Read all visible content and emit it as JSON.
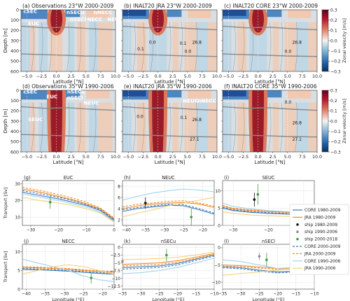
{
  "colors": {
    "neg_deep": "#1f4e98",
    "neg_mid": "#4d87c2",
    "neg_light": "#b9d4e6",
    "neutral": "#d9dee2",
    "pos_light": "#f1c9b2",
    "pos_mid": "#dd7a5c",
    "pos_deep": "#9a1b27",
    "isopycnal": "#8a8a8a"
  },
  "colorbar": {
    "label": "Zonal velocity [m/s]",
    "ticks": [
      "0.3",
      "0.2",
      "0.1",
      "0.0",
      "−0.1",
      "−0.2",
      "−0.3"
    ]
  },
  "sections": {
    "ylabel": "Depth [m]",
    "xlabel": "Latitude [°N]",
    "yticks": [
      "0",
      "100",
      "200",
      "300",
      "400",
      "500",
      "600"
    ],
    "xticks": [
      "−5.0",
      "−2.5",
      "0.0",
      "2.5",
      "5.0",
      "7.5",
      "10.0"
    ],
    "panels": [
      {
        "id": "a",
        "title": "(a)  Observations 23°W 2000-2009",
        "labels": [
          "cSEC",
          "EUC",
          "nSECu",
          "nSECl",
          "nNECC",
          "NECC",
          "NEUC"
        ]
      },
      {
        "id": "b",
        "title": "(b)  INALT20 JRA 23°W 2000-2009",
        "labels": [
          "0.0",
          "0.1",
          "0.0",
          "0.1",
          "26.8"
        ]
      },
      {
        "id": "c",
        "title": "(c)  INALT20 CORE 23°W 2000-2009",
        "labels": [
          "0.0",
          "26.8"
        ]
      },
      {
        "id": "d",
        "title": "(d)  Observations 35°W 1990-2006",
        "labels": [
          "cSEC",
          "EUC",
          "nSECu",
          "nSECl",
          "NEUC",
          "SEUC"
        ]
      },
      {
        "id": "e",
        "title": "(e)  INALT20 JRA 35°W 1990-2006",
        "labels": [
          "NEUC",
          "nNECC",
          "0.1",
          "0.0",
          "26.8",
          "27.1"
        ]
      },
      {
        "id": "f",
        "title": "(f)  INALT20 CORE 35°W 1990-2006",
        "labels": [
          "0.0",
          "26.8",
          "27.1"
        ]
      }
    ]
  },
  "legend": {
    "items": [
      {
        "label": "CORE 1980-2009",
        "style": "solid",
        "color": "#3c78b5"
      },
      {
        "label": "JRA 1980-2009",
        "style": "solid",
        "color": "#f08a28"
      },
      {
        "label": "ship 1980-2009",
        "style": "dot",
        "color": "#111111"
      },
      {
        "label": "ship 1990-2006",
        "style": "dot",
        "color": "#8c8c8c"
      },
      {
        "label": "ship 2000-2018",
        "style": "dot",
        "color": "#3d9a3d"
      },
      {
        "label": "CORE 2000-2009",
        "style": "dashed",
        "color": "#3c78b5"
      },
      {
        "label": "JRA 2000-2009",
        "style": "dashed",
        "color": "#f08a28"
      },
      {
        "label": "CORE 1990-2006",
        "style": "solid",
        "color": "#9fd3ec"
      },
      {
        "label": "JRA 1990-2006",
        "style": "solid",
        "color": "#f4d27a"
      }
    ]
  },
  "chart_data": [
    {
      "type": "line",
      "panel": "g",
      "title": "EUC",
      "ylabel": "Transport [Sv]",
      "xlabel": "",
      "xlim": [
        -33,
        0
      ],
      "ylim": [
        5,
        32
      ],
      "xticks": [
        -30,
        -20,
        -10,
        0
      ],
      "yticks": [
        10,
        20,
        30
      ],
      "series": [
        {
          "name": "CORE 1980-2009",
          "x": [
            -33,
            -30,
            -25,
            -20,
            -15,
            -10,
            -5,
            0
          ],
          "values": [
            25,
            24,
            22.5,
            21,
            19,
            17,
            14,
            8
          ]
        },
        {
          "name": "JRA 1980-2009",
          "x": [
            -33,
            -30,
            -25,
            -20,
            -15,
            -10,
            -5,
            0
          ],
          "values": [
            27,
            26,
            24.5,
            22.5,
            20.5,
            18,
            15,
            9
          ]
        },
        {
          "name": "CORE 2000-2009",
          "x": [
            -33,
            -30,
            -25,
            -20,
            -15,
            -10,
            -5,
            0
          ],
          "values": [
            26,
            25,
            23.5,
            22,
            20,
            17.5,
            14.5,
            8.5
          ]
        },
        {
          "name": "JRA 2000-2009",
          "x": [
            -33,
            -30,
            -25,
            -20,
            -15,
            -10,
            -5,
            0
          ],
          "values": [
            28,
            27,
            25.5,
            23.5,
            21.5,
            19,
            15.5,
            9.5
          ]
        },
        {
          "name": "CORE 1990-2006",
          "x": [
            -33,
            -30,
            -25,
            -20,
            -15,
            -10,
            -5,
            0
          ],
          "values": [
            24,
            23,
            21.5,
            20,
            18,
            16,
            13,
            7.5
          ]
        },
        {
          "name": "JRA 1990-2006",
          "x": [
            -33,
            -30,
            -25,
            -20,
            -15,
            -10,
            -5,
            0
          ],
          "values": [
            22,
            21,
            19.5,
            18.5,
            17,
            15,
            12.5,
            7
          ]
        }
      ],
      "points": [
        {
          "name": "ship 2000-2018",
          "x": -23,
          "y": 19,
          "err": 4
        }
      ]
    },
    {
      "type": "line",
      "panel": "h",
      "title": "NEUC",
      "ylabel": "",
      "xlabel": "",
      "xlim": [
        -41,
        -17
      ],
      "ylim": [
        1,
        9
      ],
      "xticks": [
        -40,
        -35,
        -30,
        -25,
        -20
      ],
      "yticks": [
        2,
        4,
        6,
        8
      ],
      "series": [
        {
          "name": "CORE 1980-2009",
          "x": [
            -41,
            -37,
            -33,
            -29,
            -25,
            -21,
            -17
          ],
          "values": [
            3.5,
            4,
            4.3,
            4.6,
            4.5,
            3.8,
            3
          ]
        },
        {
          "name": "JRA 1980-2009",
          "x": [
            -41,
            -37,
            -33,
            -29,
            -25,
            -21,
            -17
          ],
          "values": [
            4,
            4.5,
            4.8,
            5,
            5.1,
            4.8,
            4.2
          ]
        },
        {
          "name": "CORE 2000-2009",
          "x": [
            -41,
            -37,
            -33,
            -29,
            -25,
            -21,
            -17
          ],
          "values": [
            3.8,
            4.2,
            4.5,
            4.8,
            4.7,
            4,
            3.2
          ]
        },
        {
          "name": "JRA 2000-2009",
          "x": [
            -41,
            -37,
            -33,
            -29,
            -25,
            -21,
            -17
          ],
          "values": [
            4.3,
            4.8,
            5,
            5.3,
            5.4,
            5,
            4.4
          ]
        },
        {
          "name": "CORE 1990-2006",
          "x": [
            -41,
            -37,
            -33,
            -29,
            -25,
            -21,
            -17
          ],
          "values": [
            5.5,
            6.2,
            6.8,
            7.2,
            7.5,
            7.3,
            7
          ]
        },
        {
          "name": "JRA 1990-2006",
          "x": [
            -41,
            -37,
            -33,
            -29,
            -25,
            -21,
            -17
          ],
          "values": [
            2.5,
            3.2,
            3.8,
            4.5,
            5,
            5.5,
            6
          ]
        }
      ],
      "points": [
        {
          "name": "ship 1980-2009",
          "x": -35,
          "y": 5,
          "err": 1
        },
        {
          "name": "ship 2000-2018",
          "x": -23,
          "y": 2.5,
          "err": 1.5
        }
      ]
    },
    {
      "type": "line",
      "panel": "i",
      "title": "SEUC",
      "ylabel": "",
      "xlabel": "",
      "xlim": [
        -33,
        -7
      ],
      "ylim": [
        0,
        13
      ],
      "xticks": [
        -30,
        -20,
        -10
      ],
      "yticks": [
        0,
        5,
        10
      ],
      "series": [
        {
          "name": "CORE 1980-2009",
          "x": [
            -33,
            -30,
            -25,
            -20,
            -15,
            -10,
            -7
          ],
          "values": [
            5,
            4.3,
            3.8,
            3.5,
            3.3,
            3.1,
            3
          ]
        },
        {
          "name": "JRA 1980-2009",
          "x": [
            -33,
            -30,
            -25,
            -20,
            -15,
            -10,
            -7
          ],
          "values": [
            5.5,
            4.8,
            4.3,
            4,
            3.8,
            3.5,
            3.3
          ]
        },
        {
          "name": "CORE 2000-2009",
          "x": [
            -33,
            -30,
            -25,
            -20,
            -15,
            -10,
            -7
          ],
          "values": [
            5.2,
            4.5,
            4,
            3.7,
            3.5,
            3.3,
            3.1
          ]
        },
        {
          "name": "JRA 2000-2009",
          "x": [
            -33,
            -30,
            -25,
            -20,
            -15,
            -10,
            -7
          ],
          "values": [
            5.8,
            5,
            4.5,
            4.2,
            4,
            3.7,
            3.5
          ]
        },
        {
          "name": "CORE 1990-2006",
          "x": [
            -33,
            -30,
            -25,
            -20,
            -15,
            -10,
            -7
          ],
          "values": [
            6.5,
            5.5,
            4.8,
            4.3,
            4,
            3.8,
            3.6
          ]
        },
        {
          "name": "JRA 1990-2006",
          "x": [
            -33,
            -30,
            -25,
            -20,
            -15,
            -10,
            -7
          ],
          "values": [
            4,
            3.5,
            3,
            2.8,
            2.6,
            2.5,
            2.4
          ]
        }
      ],
      "points": [
        {
          "name": "ship 1980-2009",
          "x": -24,
          "y": 7.5,
          "err": 2
        },
        {
          "name": "ship 2000-2018",
          "x": -23,
          "y": 9,
          "err": 3
        }
      ]
    },
    {
      "type": "line",
      "panel": "j",
      "title": "NECC",
      "ylabel": "Transport [Sv]",
      "xlabel": "Longitude [°E]",
      "xlim": [
        -41,
        -17
      ],
      "ylim": [
        0,
        12
      ],
      "xticks": [
        -40,
        -35,
        -30,
        -25,
        -20
      ],
      "yticks": [
        0,
        5,
        10
      ],
      "series": [
        {
          "name": "CORE 1980-2009",
          "x": [
            -41,
            -37,
            -33,
            -29,
            -25,
            -21,
            -17
          ],
          "values": [
            5.3,
            5.2,
            5,
            4.8,
            4.5,
            4.2,
            4
          ]
        },
        {
          "name": "JRA 1980-2009",
          "x": [
            -41,
            -37,
            -33,
            -29,
            -25,
            -21,
            -17
          ],
          "values": [
            5.8,
            5.7,
            5.5,
            5.3,
            5,
            4.7,
            4.5
          ]
        },
        {
          "name": "CORE 2000-2009",
          "x": [
            -41,
            -37,
            -33,
            -29,
            -25,
            -21,
            -17
          ],
          "values": [
            5.5,
            5.4,
            5.2,
            5,
            4.7,
            4.4,
            4.2
          ]
        },
        {
          "name": "JRA 2000-2009",
          "x": [
            -41,
            -37,
            -33,
            -29,
            -25,
            -21,
            -17
          ],
          "values": [
            6,
            5.9,
            5.7,
            5.5,
            5.2,
            4.9,
            4.7
          ]
        },
        {
          "name": "CORE 1990-2006",
          "x": [
            -41,
            -37,
            -33,
            -29,
            -25,
            -21,
            -17
          ],
          "values": [
            8,
            7,
            6,
            5,
            3.5,
            2.5,
            2
          ]
        },
        {
          "name": "JRA 1990-2006",
          "x": [
            -41,
            -37,
            -33,
            -29,
            -25,
            -21,
            -17
          ],
          "values": [
            4,
            5,
            6,
            6.5,
            6,
            5,
            4
          ]
        }
      ],
      "points": [
        {
          "name": "ship 2000-2018",
          "x": -23,
          "y": 3,
          "err": 1.5
        }
      ]
    },
    {
      "type": "line",
      "panel": "k",
      "title": "nSECu",
      "ylabel": "",
      "xlabel": "Longitude [°E]",
      "xlim": [
        -35,
        -10
      ],
      "ylim": [
        -13.5,
        1
      ],
      "xticks": [
        -35,
        -30,
        -25,
        -20,
        -15,
        -10
      ],
      "yticks": [
        -12.5,
        -10,
        -7.5,
        -5,
        -2.5,
        0
      ],
      "series": [
        {
          "name": "CORE 1980-2009",
          "x": [
            -35,
            -30,
            -25,
            -20,
            -15,
            -10
          ],
          "values": [
            -6.5,
            -6.3,
            -6,
            -5.2,
            -3.8,
            -2.5
          ]
        },
        {
          "name": "JRA 1980-2009",
          "x": [
            -35,
            -30,
            -25,
            -20,
            -15,
            -10
          ],
          "values": [
            -5.5,
            -5.3,
            -5,
            -4.3,
            -3.2,
            -2
          ]
        },
        {
          "name": "CORE 2000-2009",
          "x": [
            -35,
            -30,
            -25,
            -20,
            -15,
            -10
          ],
          "values": [
            -7,
            -6.8,
            -6.5,
            -5.7,
            -4.2,
            -2.8
          ]
        },
        {
          "name": "JRA 2000-2009",
          "x": [
            -35,
            -30,
            -25,
            -20,
            -15,
            -10
          ],
          "values": [
            -6,
            -5.8,
            -5.5,
            -4.8,
            -3.6,
            -2.3
          ]
        },
        {
          "name": "CORE 1990-2006",
          "x": [
            -35,
            -30,
            -25,
            -20,
            -15,
            -10
          ],
          "values": [
            -8.5,
            -8.2,
            -7.5,
            -6.5,
            -5,
            -3.5
          ]
        },
        {
          "name": "JRA 1990-2006",
          "x": [
            -35,
            -30,
            -25,
            -20,
            -15,
            -10
          ],
          "values": [
            -4,
            -3.8,
            -3.6,
            -3.2,
            -2.5,
            -1.5
          ]
        }
      ],
      "points": [
        {
          "name": "ship 2000-2018",
          "x": -23,
          "y": -2.5,
          "err": 2
        },
        {
          "name": "ship 1990-2006",
          "x": -35,
          "y": -4.5,
          "err": 1
        }
      ]
    },
    {
      "type": "line",
      "panel": "l",
      "title": "nSECl",
      "ylabel": "",
      "xlabel": "Longitude [°E]",
      "xlim": [
        -35,
        -10
      ],
      "ylim": [
        -12,
        1
      ],
      "xticks": [
        -35,
        -30,
        -25,
        -20,
        -15,
        -10
      ],
      "yticks": [
        -10,
        -5,
        0
      ],
      "series": [
        {
          "name": "CORE 1980-2009",
          "x": [
            -35,
            -30,
            -25,
            -20,
            -15,
            -10
          ],
          "values": [
            -5.5,
            -5.8,
            -6.5,
            -7,
            -6.8,
            -5.5
          ]
        },
        {
          "name": "JRA 1980-2009",
          "x": [
            -35,
            -30,
            -25,
            -20,
            -15,
            -10
          ],
          "values": [
            -5,
            -5.2,
            -5.6,
            -6,
            -5.8,
            -5
          ]
        },
        {
          "name": "CORE 2000-2009",
          "x": [
            -35,
            -30,
            -25,
            -20,
            -15,
            -10
          ],
          "values": [
            -5.8,
            -6.1,
            -6.8,
            -7.3,
            -7,
            -5.8
          ]
        },
        {
          "name": "JRA 2000-2009",
          "x": [
            -35,
            -30,
            -25,
            -20,
            -15,
            -10
          ],
          "values": [
            -5.3,
            -5.5,
            -5.9,
            -6.3,
            -6,
            -5.2
          ]
        },
        {
          "name": "CORE 1990-2006",
          "x": [
            -35,
            -30,
            -25,
            -20,
            -15,
            -10
          ],
          "values": [
            -3.5,
            -4,
            -5,
            -6,
            -6.5,
            -6
          ]
        },
        {
          "name": "JRA 1990-2006",
          "x": [
            -35,
            -30,
            -25,
            -20,
            -15,
            -10
          ],
          "values": [
            -8,
            -7.5,
            -7,
            -6.5,
            -6,
            -5.5
          ]
        }
      ],
      "points": [
        {
          "name": "ship 2000-2018",
          "x": -23,
          "y": -3.5,
          "err": 2
        },
        {
          "name": "ship 1990-2006",
          "x": -25,
          "y": -2.5,
          "err": 1
        }
      ]
    }
  ]
}
